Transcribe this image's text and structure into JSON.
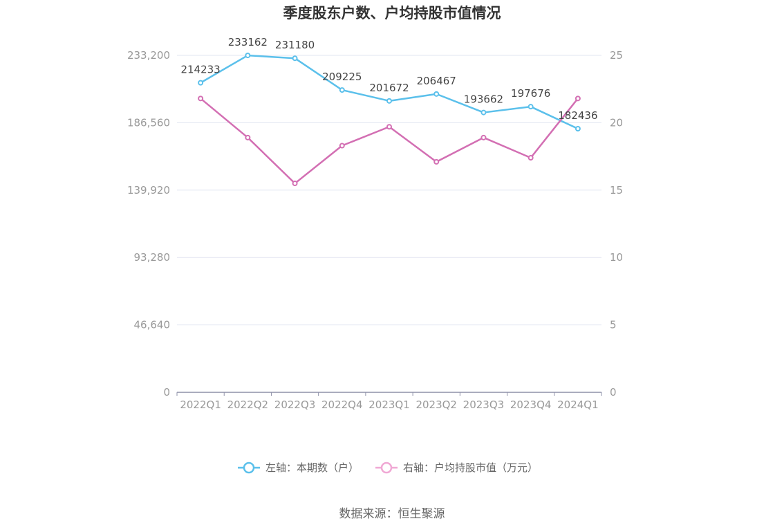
{
  "chart_data": {
    "type": "line",
    "title": "季度股东户数、户均持股市值情况",
    "categories": [
      "2022Q1",
      "2022Q2",
      "2022Q3",
      "2022Q4",
      "2023Q1",
      "2023Q2",
      "2023Q3",
      "2023Q4",
      "2024Q1"
    ],
    "series": [
      {
        "name": "左轴：本期数（户）",
        "axis": "left",
        "color": "#5bc0eb",
        "values": [
          214233,
          233162,
          231180,
          209225,
          201672,
          206467,
          193662,
          197676,
          182436
        ],
        "labels": [
          "214233",
          "233162",
          "231180",
          "209225",
          "201672",
          "206467",
          "193662",
          "197676",
          "182436"
        ]
      },
      {
        "name": "右轴：户均持股市值（万元）",
        "axis": "right",
        "color": "#d36fb3",
        "values": [
          21.8,
          18.9,
          15.5,
          18.3,
          19.7,
          17.1,
          18.9,
          17.4,
          21.8
        ]
      }
    ],
    "y_left": {
      "ylim": [
        0,
        233200
      ],
      "ticks": [
        "0",
        "46,640",
        "93,280",
        "139,920",
        "186,560",
        "233,200"
      ]
    },
    "y_right": {
      "ylim": [
        0,
        25
      ],
      "ticks": [
        "0",
        "5",
        "10",
        "15",
        "20",
        "25"
      ]
    },
    "grid": true,
    "legend": "bottom-center"
  },
  "source": "数据来源：恒生聚源"
}
